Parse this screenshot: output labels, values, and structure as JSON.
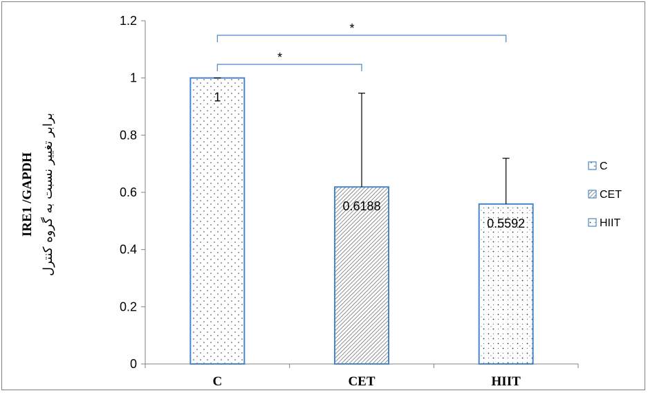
{
  "chart_data": {
    "type": "bar",
    "categories": [
      "C",
      "CET",
      "HIIT"
    ],
    "values": [
      1,
      0.6188,
      0.5592
    ],
    "data_labels": [
      "1",
      "0.6188",
      "0.5592"
    ],
    "error_bars_upper": [
      0,
      0.328,
      0.16
    ],
    "title": "",
    "xlabel": "",
    "ylabel": "IRE1 /GAPDH",
    "ylabel_secondary": "برابر تغییر نسبت به گروه کنترل",
    "ylim": [
      0,
      1.2
    ],
    "yticks": [
      0,
      0.2,
      0.4,
      0.6,
      0.8,
      1,
      1.2
    ],
    "ytick_labels": [
      "0",
      "0.2",
      "0.4",
      "0.6",
      "0.8",
      "1",
      "1.2"
    ],
    "legend": {
      "placement": "right",
      "entries": [
        "C",
        "CET",
        "HIIT"
      ]
    },
    "bar_patterns": [
      "dots",
      "diagonal-hatch",
      "diamond-dots"
    ],
    "bar_border_color": "#4a86c5",
    "significance": [
      {
        "from": "C",
        "to": "CET",
        "label": "*"
      },
      {
        "from": "C",
        "to": "HIIT",
        "label": "*"
      }
    ],
    "grid": false
  }
}
